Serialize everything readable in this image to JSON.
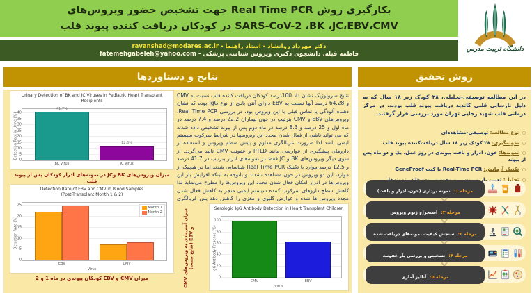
{
  "header": {
    "title_line1": "بکارگیری روش Real Time PCR جهت تشخیص حضور ویروس‌های",
    "title_line2": "SARS-CoV-2 ،BK ،JC،EBV،CMV در کودکان دریافت کننده پیوند قلب",
    "author_line1": "دکتر مهرداد روانشاد - استاد راهنما - ravanshad@modares.ac.ir",
    "author_line2": "فاطمه قبله. دانشجوی دکتری ویروس شناسی پزشکی - fatemehgabeleh@yahoo.com",
    "logo_caption": "دانشگاه تربیت مدرس"
  },
  "results": {
    "heading": "نتایج و دستاوردها",
    "paragraph": "نتایج سرولوژیک نشان داد 100درصد کودکان دریافت کننده قلب نسبت به CMV و 64.28 درصد آنها نسبت به EBV دارای آنتی بادی از نوع IgG بوده که نشان دهنده آلودگی یا تماس قبلی با این ویروس بود. در بررسی Real Time PCR، ویروس‌های EBV و CMV بترتیب در خون بیماران 22.2 درصد و 7.4 درصد در ماه اول و 25 درصد و 8.3 درصد در ماه دوم پس از پیوند تشخیص داده شدند که می تواند ناشی از فعال شدن مجدد این ویروسها در شرایط سرکوب سیستم ایمنی باشد لذا ضرورت غربالگری مداوم و پایش منظم ویروس و استفاده از داروهای پیشگیری از عوارضی مانند PTLD و عفونت CMV تایید می‌گردد. از سوی دیگر ویروس‌های BK و JC فقط در نمونه‌های ادرار بترتیب در 41.7 درصد و 12.5 درصد موارد با تکنیک Real Time PCR شناسایی شدند اما در هیچیک از موارد، این دو ویروس در خون مشاهده نشدند و باتوجه به اینکه افزایش بار این ویروس‌ها در ادرار امکان فعال شدن مجدد این ویروس‌ها را مطرح می‌نماید لذا کاهش سطح داروهای سرکوب کننده سیستم ایمنی منجر به کاهش فعال شدن مجدد ویروس ها شده و عوارض کلیوی و مغزی را کاهش دهد پس غربالگری منظم این ویروسها نیز می‌تواند بسیار کمک کننده باشد.",
    "caption_chart_urinary": "میزان ویروس‌های BK وJC در نمونه‌های ادرار کودکان پس از پیوند قلب",
    "caption_chart_blood": "میزان CMV و EBV کودکان پیوندی در ماه 1 و 2",
    "caption_chart_serologic_vertical": "میزان آنتی‌بادی به ویروس‌های CMV و EBV (نتایج مثبت)"
  },
  "method": {
    "heading": "روش تحقیق",
    "paragraph": "در این مطالعه توصیفی-تحلیلی، ۲۸ کودک زیر ۱۸ سال که به دلیل نارسایی قلبی کاندید دریافت پیوند قلب بودند، در مرکز درمانی قلب شهید رجایی تهران مورد بررسی قرار گرفتند.",
    "bullets": [
      {
        "label": "نوع مطالعه:",
        "text": "توصیفی-مشاهده‌ای"
      },
      {
        "label": "نمونه‌گیری:",
        "text": "۲۸ کودک زیر ۱۸ سال دریافت‌کننده پیوند قلب"
      },
      {
        "label": "نمونه‌ها:",
        "text": "خون، ادرار و بافت پیوندی در روز عمل، یک و دو ماه پس از پیوند"
      },
      {
        "label": "تکنیک آزمایش:",
        "text": "Real-Time PCR با کیت GeneProof"
      },
      {
        "label": "تحلیل:",
        "text": "تعیین بار ویروسی و وجود ویروس‌ها در نمونه‌ها"
      }
    ],
    "stages": [
      {
        "num": "مرحله ۱:",
        "text": "نمونه برداری (خون، ادرار و بافت)",
        "icons": [
          "skin-syringe-icon",
          "urine-sample-icon",
          "blood-bag-icon"
        ]
      },
      {
        "num": "مرحله ۲:",
        "text": "استخراج ژنوم ویروس",
        "icons": [
          "virus-icon",
          "dna-molecule-icon",
          "dna-helix-icon"
        ]
      },
      {
        "num": "مرحله ۳:",
        "text": "سنجش کیفیت نمونه‌های دریافت شده",
        "icons": [
          "microscope-icon",
          "report-doc-icon",
          "magnifier-virus-icon"
        ]
      },
      {
        "num": "مرحله ۴:",
        "text": "تشخیص و بررسی بار عفونت",
        "icons": [
          "pcr-machine-icon",
          "pcr-checklist-icon",
          "test-tubes-icon"
        ]
      },
      {
        "num": "مرحله ۵:",
        "text": "آنالیز آماری",
        "icons": [
          "stats-graph-icon",
          "clipboard-chart-icon",
          "petri-dish-icon"
        ]
      }
    ]
  },
  "chart_data": [
    {
      "type": "bar",
      "title": "Urinary Detection of BK and JC Viruses in Pediatric Heart Transplant Recipients",
      "categories": [
        "BK Virus",
        "JC Virus"
      ],
      "values": [
        41.7,
        12.5
      ],
      "bar_labels": [
        "41.7%",
        "12.5%"
      ],
      "colors": [
        "#1a9a8d",
        "#8e079c"
      ],
      "xlabel": "",
      "ylabel": "Detection Rate in Urine (%)",
      "ylim": [
        0,
        44
      ],
      "yticks": [
        0,
        5,
        10,
        15,
        20,
        25,
        30,
        35,
        40
      ],
      "grid": true
    },
    {
      "type": "bar",
      "title": "Detection Rate of EBV and CMV in Blood Samples",
      "subtitle": "(Post-Transplant Month 1 & 2)",
      "categories": [
        "EBV",
        "CMV"
      ],
      "series": [
        {
          "name": "Month 1",
          "color": "#FFA513",
          "values": [
            22.2,
            7.4
          ]
        },
        {
          "name": "Month 2",
          "color": "#FF7548",
          "values": [
            25,
            8.3
          ]
        }
      ],
      "legend": true,
      "legend_position": "top-right",
      "xlabel": "Virus",
      "ylabel": "Detection Rate (%)",
      "ylim": [
        0,
        26.5
      ],
      "yticks": [
        0,
        5,
        10,
        15,
        20,
        25
      ],
      "grid": true
    },
    {
      "type": "bar",
      "title": "Serologic IgG Antibody Detection in Heart Transplant Children",
      "categories": [
        "CMV",
        "EBV"
      ],
      "values": [
        100,
        64.28
      ],
      "colors": [
        "#168a16",
        "#1c1cdc"
      ],
      "xlabel": "Virus",
      "ylabel": "IgG Antibody Presence (%)",
      "ylim": [
        0,
        108
      ],
      "yticks": [
        0,
        20,
        40,
        60,
        80,
        100
      ],
      "grid": true
    }
  ],
  "colors": {
    "header_green": "#8fce4e",
    "authors_bar_green": "#3b5a24",
    "panel_heading_gold": "#c19202",
    "panel_body_cream": "#fae9a6",
    "caption_maroon": "#8a1c10",
    "body_text_navy": "#1f3864",
    "stage_pill_dark": "#3e3e3e",
    "stage_number_orange": "#f5a623",
    "author_line1_yellow": "#f5e23a"
  }
}
